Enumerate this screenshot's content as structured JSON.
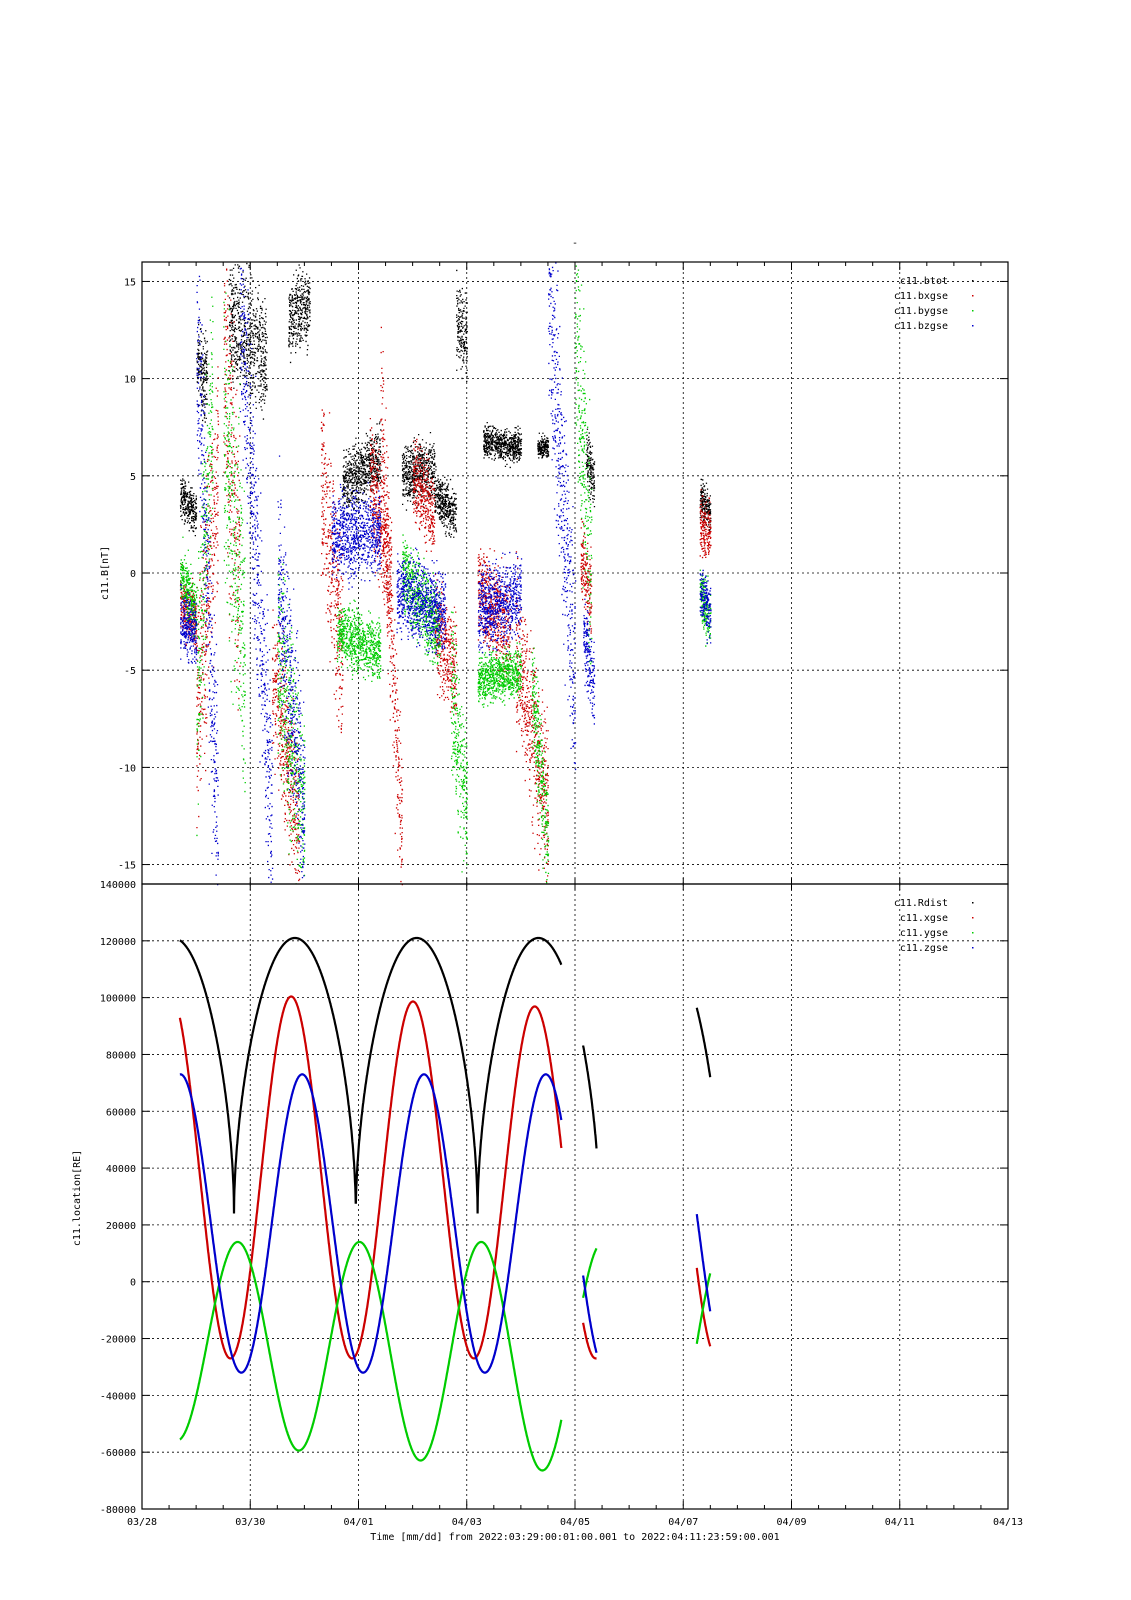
{
  "figure": {
    "title": "-",
    "xlabel": "Time [mm/dd]  from 2022:03:29:00:01:00.001  to  2022:04:11:23:59:00.001"
  },
  "colors": {
    "black": "#000000",
    "red": "#cc0000",
    "green": "#00cc00",
    "blue": "#0000cc"
  },
  "chart_data": [
    {
      "type": "scatter",
      "ylabel": "c11.B[nT]",
      "ylim": [
        -16,
        16
      ],
      "yticks": [
        15,
        10,
        5,
        0,
        -5,
        -10,
        -15
      ],
      "grid": true,
      "legend_position": "top-right",
      "x_unit": "days since 2022-03-28 00:00 UT",
      "series": [
        {
          "name": "c11.btot",
          "color": "#000000",
          "segments": [
            {
              "x": [
                0.7,
                1.0
              ],
              "y_center": [
                4.0,
                3.0
              ],
              "spread": 1.0
            },
            {
              "x": [
                1.0,
                1.2
              ],
              "y_center": [
                11.0,
                10.0
              ],
              "spread": 2.0
            },
            {
              "x": [
                1.6,
                2.3
              ],
              "y_center": [
                13.0,
                11.0
              ],
              "spread": 3.0
            },
            {
              "x": [
                2.7,
                3.1
              ],
              "y_center": [
                13.0,
                14.0
              ],
              "spread": 2.0
            },
            {
              "x": [
                3.7,
                4.4
              ],
              "y_center": [
                4.5,
                6.0
              ],
              "spread": 1.5
            },
            {
              "x": [
                4.8,
                5.4
              ],
              "y_center": [
                5.0,
                5.5
              ],
              "spread": 1.5
            },
            {
              "x": [
                5.4,
                5.8
              ],
              "y_center": [
                4.0,
                3.0
              ],
              "spread": 1.2
            },
            {
              "x": [
                5.8,
                6.0
              ],
              "y_center": [
                13.0,
                12.0
              ],
              "spread": 2.0
            },
            {
              "x": [
                6.3,
                7.0
              ],
              "y_center": [
                6.8,
                6.5
              ],
              "spread": 0.8
            },
            {
              "x": [
                7.3,
                7.5
              ],
              "y_center": [
                6.5,
                6.5
              ],
              "spread": 0.5
            },
            {
              "x": [
                8.2,
                8.35
              ],
              "y_center": [
                6.0,
                5.0
              ],
              "spread": 1.5
            },
            {
              "x": [
                10.3,
                10.5
              ],
              "y_center": [
                4.0,
                3.0
              ],
              "spread": 1.0
            }
          ]
        },
        {
          "name": "c11.bxgse",
          "color": "#cc0000",
          "segments": [
            {
              "x": [
                0.7,
                1.0
              ],
              "y_center": [
                -1.5,
                -2.5
              ],
              "spread": 1.5
            },
            {
              "x": [
                1.0,
                1.4
              ],
              "y_center": [
                -7.0,
                5.0
              ],
              "spread": 6.0
            },
            {
              "x": [
                1.5,
                1.8
              ],
              "y_center": [
                12.0,
                0.0
              ],
              "spread": 8.0
            },
            {
              "x": [
                2.4,
                2.9
              ],
              "y_center": [
                -5.0,
                -13.0
              ],
              "spread": 4.0
            },
            {
              "x": [
                3.3,
                3.7
              ],
              "y_center": [
                5.0,
                -4.0
              ],
              "spread": 5.0
            },
            {
              "x": [
                4.2,
                4.6
              ],
              "y_center": [
                5.0,
                0.0
              ],
              "spread": 3.0
            },
            {
              "x": [
                4.4,
                4.8
              ],
              "y_center": [
                8.0,
                -14.0
              ],
              "spread": 5.0
            },
            {
              "x": [
                5.0,
                5.4
              ],
              "y_center": [
                5.0,
                3.0
              ],
              "spread": 2.0
            },
            {
              "x": [
                5.4,
                5.8
              ],
              "y_center": [
                -3.0,
                -5.0
              ],
              "spread": 2.5
            },
            {
              "x": [
                6.2,
                6.8
              ],
              "y_center": [
                -1.0,
                -3.0
              ],
              "spread": 2.5
            },
            {
              "x": [
                6.9,
                7.5
              ],
              "y_center": [
                -4.0,
                -12.0
              ],
              "spread": 4.0
            },
            {
              "x": [
                8.1,
                8.3
              ],
              "y_center": [
                1.0,
                -1.5
              ],
              "spread": 2.0
            },
            {
              "x": [
                10.3,
                10.5
              ],
              "y_center": [
                2.5,
                2.0
              ],
              "spread": 1.5
            }
          ]
        },
        {
          "name": "c11.bygse",
          "color": "#00cc00",
          "segments": [
            {
              "x": [
                0.7,
                1.0
              ],
              "y_center": [
                0.0,
                -2.0
              ],
              "spread": 1.5
            },
            {
              "x": [
                1.0,
                1.3
              ],
              "y_center": [
                -7.0,
                10.0
              ],
              "spread": 6.0
            },
            {
              "x": [
                1.5,
                1.9
              ],
              "y_center": [
                8.0,
                -4.0
              ],
              "spread": 8.0
            },
            {
              "x": [
                2.5,
                3.0
              ],
              "y_center": [
                -4.0,
                -13.0
              ],
              "spread": 5.0
            },
            {
              "x": [
                3.6,
                4.4
              ],
              "y_center": [
                -3.0,
                -4.0
              ],
              "spread": 1.5
            },
            {
              "x": [
                4.8,
                5.5
              ],
              "y_center": [
                0.0,
                -3.0
              ],
              "spread": 2.0
            },
            {
              "x": [
                5.7,
                6.0
              ],
              "y_center": [
                -6.0,
                -12.0
              ],
              "spread": 4.0
            },
            {
              "x": [
                6.2,
                7.0
              ],
              "y_center": [
                -5.5,
                -5.0
              ],
              "spread": 1.2
            },
            {
              "x": [
                7.2,
                7.5
              ],
              "y_center": [
                -6.0,
                -14.0
              ],
              "spread": 3.0
            },
            {
              "x": [
                8.0,
                8.3
              ],
              "y_center": [
                12.0,
                0.0
              ],
              "spread": 6.0
            },
            {
              "x": [
                10.3,
                10.5
              ],
              "y_center": [
                -1.0,
                -2.5
              ],
              "spread": 1.5
            }
          ]
        },
        {
          "name": "c11.bzgse",
          "color": "#0000cc",
          "segments": [
            {
              "x": [
                0.7,
                1.0
              ],
              "y_center": [
                -2.5,
                -3.0
              ],
              "spread": 1.5
            },
            {
              "x": [
                1.0,
                1.4
              ],
              "y_center": [
                13.0,
                -14.0
              ],
              "spread": 6.0
            },
            {
              "x": [
                1.8,
                2.4
              ],
              "y_center": [
                15.0,
                -13.0
              ],
              "spread": 6.0
            },
            {
              "x": [
                2.5,
                3.0
              ],
              "y_center": [
                0.0,
                -12.0
              ],
              "spread": 5.0
            },
            {
              "x": [
                3.5,
                4.4
              ],
              "y_center": [
                2.0,
                2.0
              ],
              "spread": 2.0
            },
            {
              "x": [
                4.7,
                5.6
              ],
              "y_center": [
                -1.0,
                -2.0
              ],
              "spread": 2.0
            },
            {
              "x": [
                6.2,
                7.0
              ],
              "y_center": [
                -2.0,
                -1.0
              ],
              "spread": 2.0
            },
            {
              "x": [
                7.5,
                8.0
              ],
              "y_center": [
                15.0,
                -6.0
              ],
              "spread": 6.0
            },
            {
              "x": [
                8.15,
                8.35
              ],
              "y_center": [
                -3.0,
                -6.0
              ],
              "spread": 2.0
            },
            {
              "x": [
                10.3,
                10.5
              ],
              "y_center": [
                -1.0,
                -2.0
              ],
              "spread": 1.5
            }
          ]
        }
      ]
    },
    {
      "type": "line",
      "ylabel": "c11.location[RE]",
      "ylim": [
        -80000,
        140000
      ],
      "yticks": [
        140000,
        120000,
        100000,
        80000,
        60000,
        40000,
        20000,
        0,
        -20000,
        -40000,
        -60000,
        -80000
      ],
      "grid": true,
      "legend_position": "top-right",
      "x_unit": "days since 2022-03-28 00:00 UT",
      "orbit": {
        "period_days": 2.25,
        "first_perigee_x": 1.7,
        "Rdist": {
          "min": 24000,
          "max": 121000
        },
        "xgse": {
          "min": -27000,
          "max_range": [
            102000,
            96000
          ]
        },
        "ygse": {
          "max": 14000,
          "min_range": [
            -56000,
            -68000
          ]
        },
        "zgse": {
          "min": -32000,
          "max": 73000
        }
      },
      "segments_x": [
        [
          0.7,
          7.75
        ],
        [
          8.15,
          8.4
        ],
        [
          10.25,
          10.5
        ]
      ],
      "series": [
        {
          "name": "c11.Rdist",
          "color": "#000000"
        },
        {
          "name": "c11.xgse",
          "color": "#cc0000"
        },
        {
          "name": "c11.ygse",
          "color": "#cc0000"
        },
        {
          "name": "c11.zgse",
          "color": "#0000cc"
        }
      ]
    }
  ],
  "x_axis": {
    "xlim": [
      0,
      16
    ],
    "major_ticks": [
      0,
      2,
      4,
      6,
      8,
      10,
      12,
      14,
      16
    ],
    "tick_labels": [
      "03/28",
      "03/30",
      "04/01",
      "04/03",
      "04/05",
      "04/07",
      "04/09",
      "04/11",
      "04/13"
    ]
  }
}
